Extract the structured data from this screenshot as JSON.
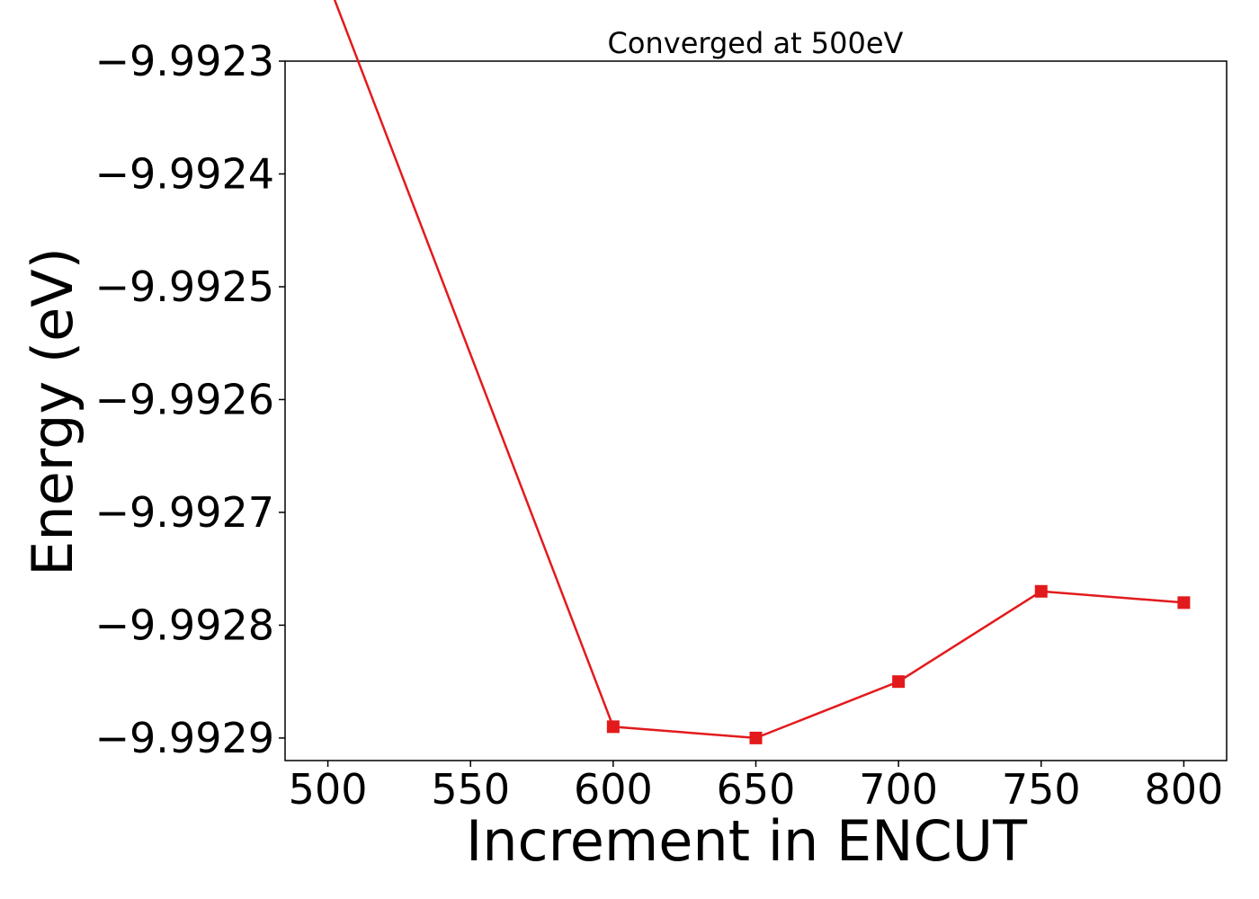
{
  "chart_data": {
    "type": "line",
    "title": "Converged at 500eV",
    "xlabel": "Increment in ENCUT",
    "ylabel": "Energy (eV)",
    "x": [
      500,
      600,
      650,
      700,
      750,
      800
    ],
    "series": [
      {
        "values": [
          -9.99223,
          -9.99289,
          -9.9929,
          -9.99285,
          -9.99277,
          -9.99278
        ],
        "color": "#e31a1c",
        "marker": "square"
      }
    ],
    "xlim": [
      485,
      815
    ],
    "ylim": [
      -9.99292,
      -9.9923
    ],
    "xticks": [
      500,
      550,
      600,
      650,
      700,
      750,
      800
    ],
    "xtick_labels": [
      "500",
      "550",
      "600",
      "650",
      "700",
      "750",
      "800"
    ],
    "yticks": [
      -9.9923,
      -9.9924,
      -9.9925,
      -9.9926,
      -9.9927,
      -9.9928,
      -9.9929
    ],
    "ytick_labels": [
      "−9.9923",
      "−9.9924",
      "−9.9925",
      "−9.9926",
      "−9.9927",
      "−9.9928",
      "−9.9929"
    ],
    "grid": false,
    "legend": false
  }
}
